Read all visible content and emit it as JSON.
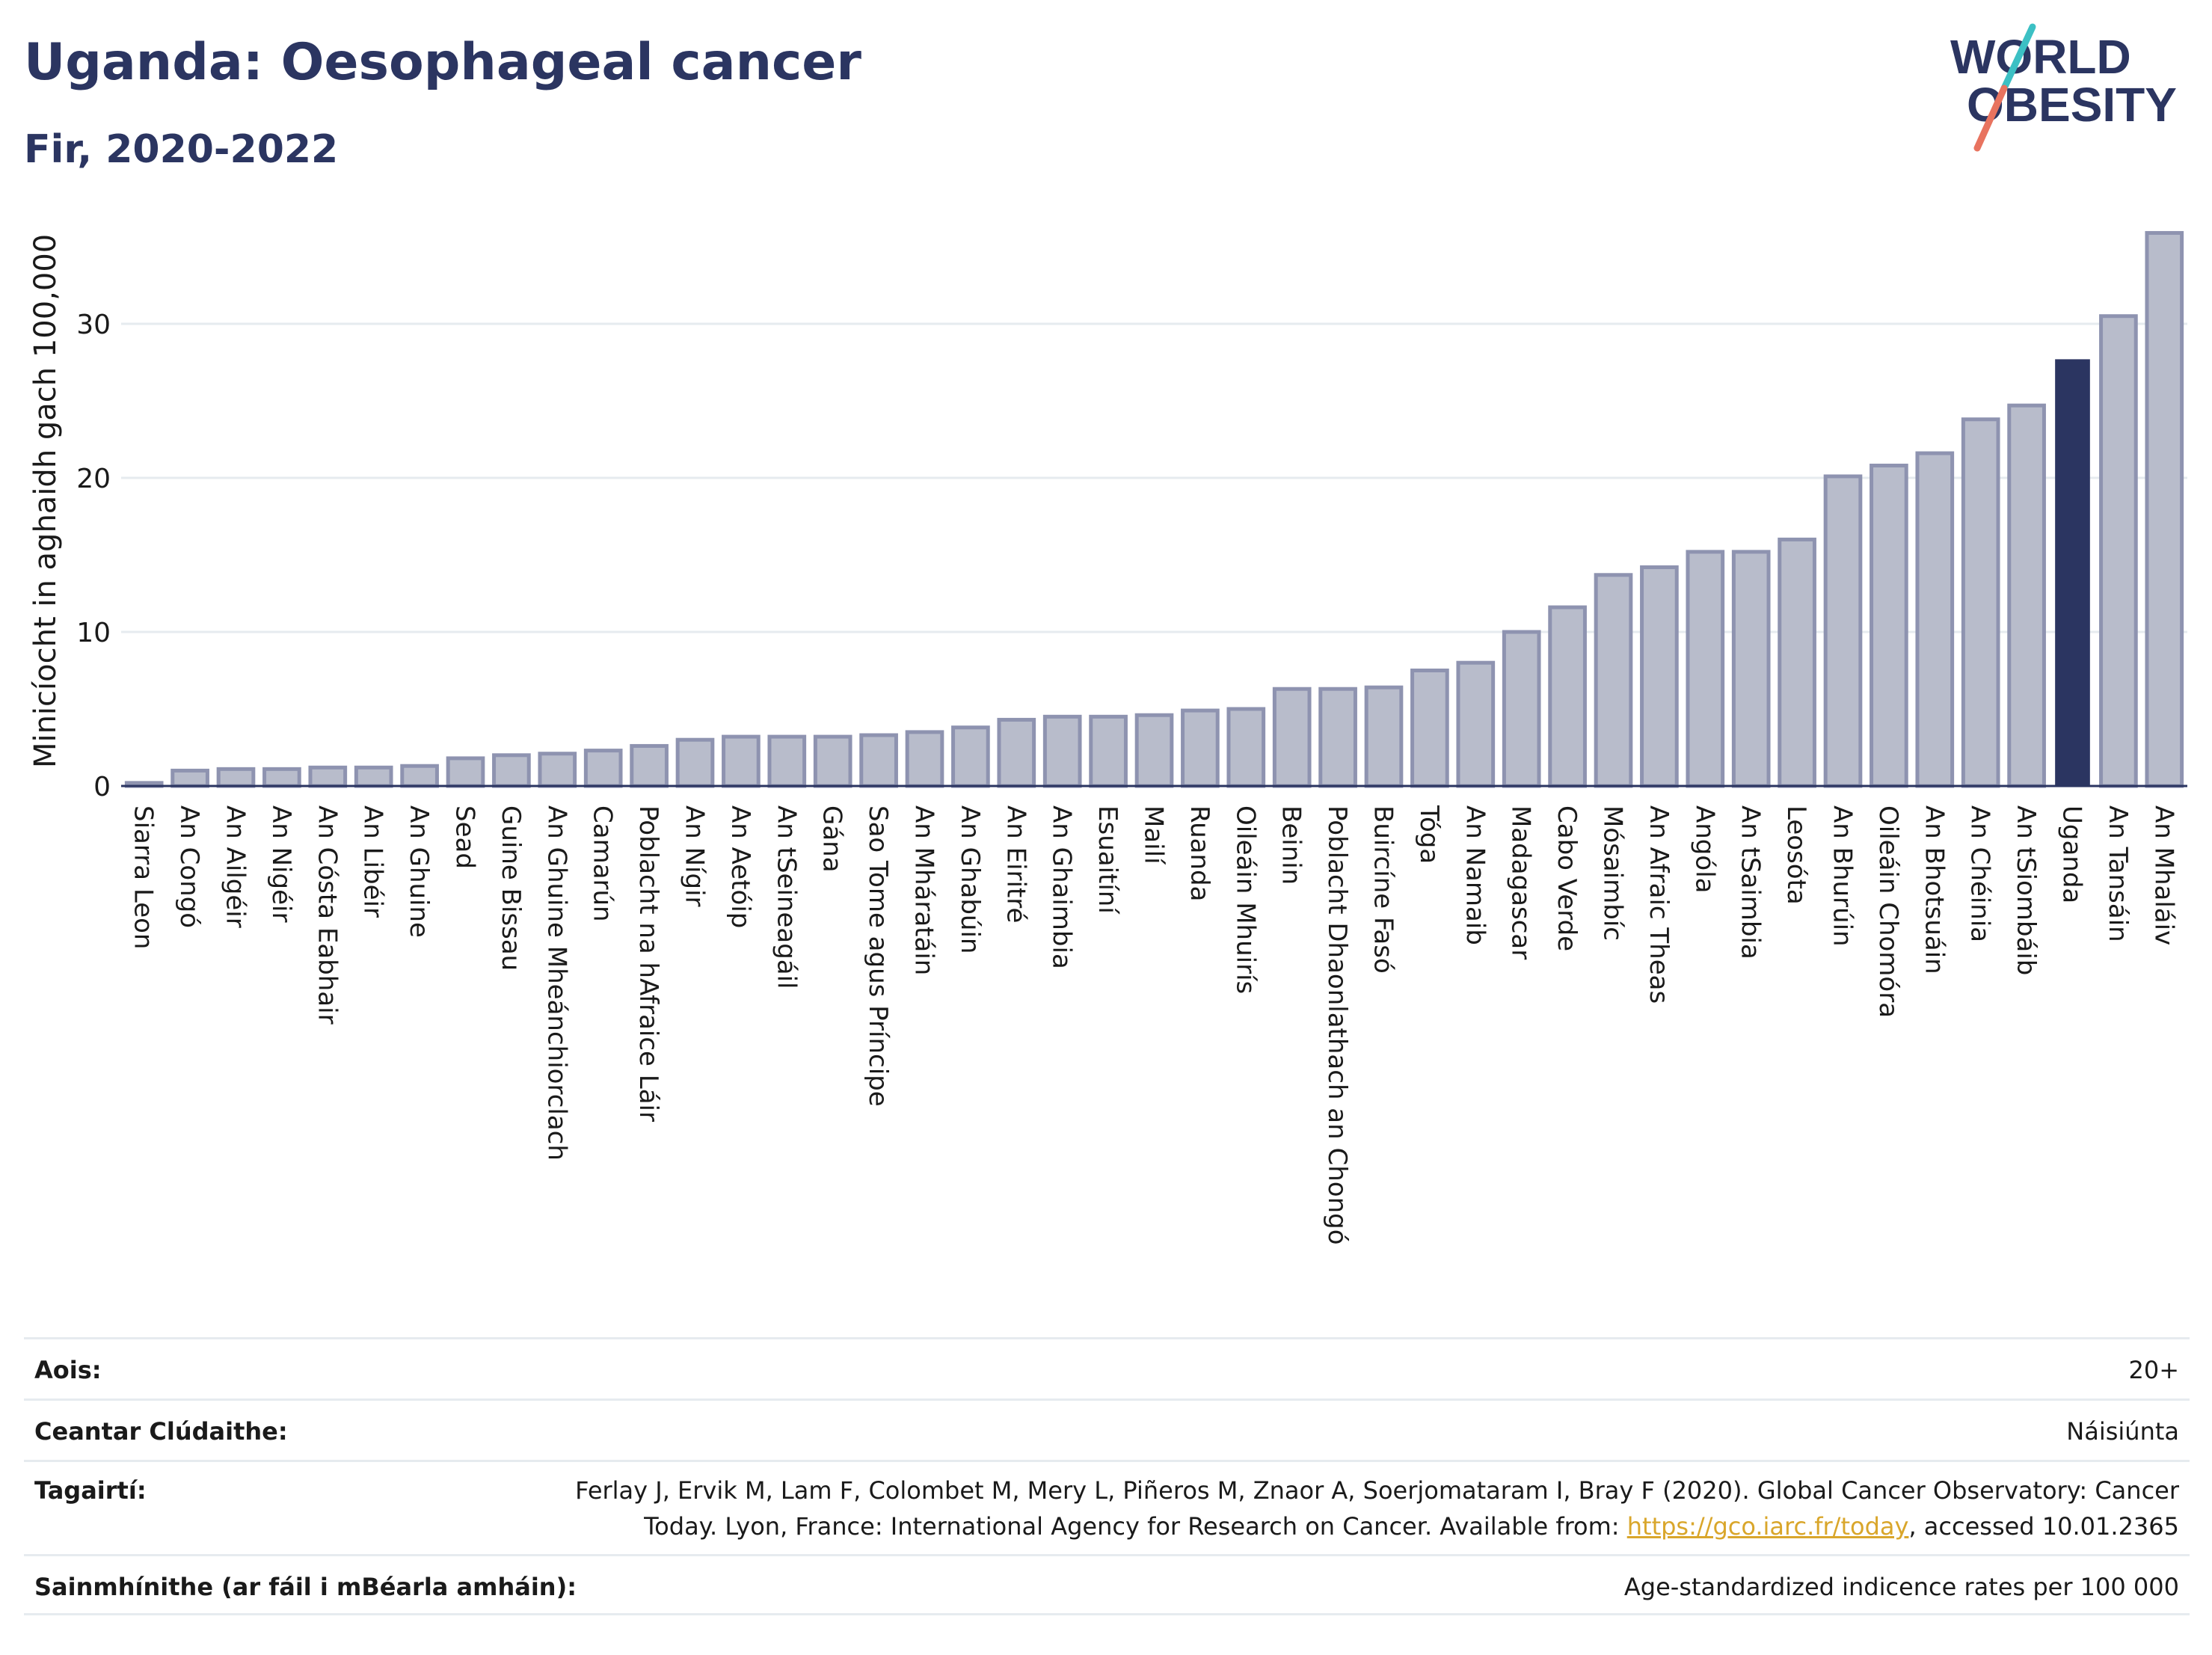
{
  "header": {
    "title": "Uganda: Oesophageal cancer",
    "subtitle": "Fir, 2020-2022",
    "logo_line1": "WORLD",
    "logo_line2": "OBESITY"
  },
  "colors": {
    "bar": "#b8bccb",
    "bar_border": "#8e93b0",
    "highlight": "#2b3561",
    "grid": "#e6ebef",
    "logo_text": "#2b3561",
    "logo_slash_top": "#3cc0c4",
    "logo_slash_bottom": "#e8735f"
  },
  "chart_data": {
    "type": "bar",
    "ylabel": "Minicíocht in aghaidh gach 100,000",
    "ylim": [
      0,
      37
    ],
    "yticks": [
      0,
      10,
      20,
      30
    ],
    "grid": true,
    "highlight_category": "Uganda",
    "categories": [
      "Siarra Leon",
      "An Congó",
      "An Ailgéir",
      "An Nigéir",
      "An Cósta Eabhair",
      "An Libéir",
      "An Ghuine",
      "Sead",
      "Guine Bissau",
      "An Ghuine Mheánchiorclach",
      "Camarún",
      "Poblacht na hAfraice Láir",
      "An Nígir",
      "An Aetóip",
      "An tSeineagáil",
      "Gána",
      "Sao Tome agus Príncipe",
      "An Mháratáin",
      "An Ghabúin",
      "An Eiritré",
      "An Ghaimbia",
      "Esuaitíní",
      "Mailí",
      "Ruanda",
      "Oileáin Mhuirís",
      "Beinin",
      "Poblacht Dhaonlathach an Chongó",
      "Buircíne Fasó",
      "Tóga",
      "An Namaib",
      "Madagascar",
      "Cabo Verde",
      "Mósaimbíc",
      "An Afraic Theas",
      "Angóla",
      "An tSaimbia",
      "Leosóta",
      "An Bhurúin",
      "Oileáin Chomóra",
      "An Bhotsuáin",
      "An Chéinia",
      "An tSiombáib",
      "Uganda",
      "An Tansáin",
      "An Mhaláiv"
    ],
    "values": [
      0.2,
      1.0,
      1.1,
      1.1,
      1.2,
      1.2,
      1.3,
      1.8,
      2.0,
      2.1,
      2.3,
      2.6,
      3.0,
      3.2,
      3.2,
      3.2,
      3.3,
      3.5,
      3.8,
      4.3,
      4.5,
      4.5,
      4.6,
      4.9,
      5.0,
      6.3,
      6.3,
      6.4,
      7.5,
      8.0,
      10.0,
      11.6,
      13.7,
      14.2,
      15.2,
      15.2,
      16.0,
      20.1,
      20.8,
      21.6,
      23.8,
      24.7,
      27.7,
      30.5,
      35.9
    ]
  },
  "info": {
    "age_label": "Aois:",
    "age_value": "20+",
    "coverage_label": "Ceantar Clúdaithe:",
    "coverage_value": "Náisiúnta",
    "refs_label": "Tagairtí:",
    "refs_line1": "Ferlay J, Ervik M, Lam F, Colombet M, Mery L, Piñeros M, Znaor A, Soerjomataram I, Bray F (2020). Global Cancer Observatory: Cancer",
    "refs_line2_pre": "Today. Lyon, France: International Agency for Research on Cancer. Available from: ",
    "refs_link": "https://gco.iarc.fr/today",
    "refs_line2_post": ", accessed 10.01.2365",
    "defs_label": "Sainmhínithe (ar fáil i mBéarla amháin):",
    "defs_value": "Age-standardized indicence rates per 100 000"
  }
}
